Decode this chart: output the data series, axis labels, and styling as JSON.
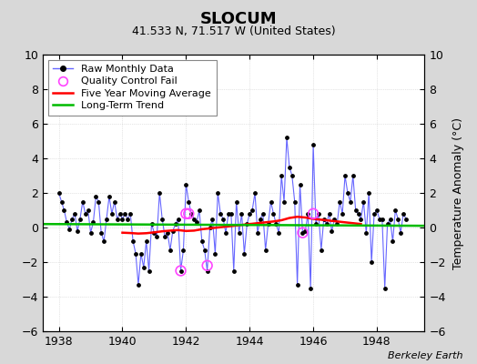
{
  "title": "SLOCUM",
  "subtitle": "41.533 N, 71.517 W (United States)",
  "ylabel": "Temperature Anomaly (°C)",
  "xlabel_credit": "Berkeley Earth",
  "xlim": [
    1937.5,
    1949.5
  ],
  "ylim": [
    -6,
    10
  ],
  "yticks": [
    -6,
    -4,
    -2,
    0,
    2,
    4,
    6,
    8,
    10
  ],
  "xticks": [
    1938,
    1940,
    1942,
    1944,
    1946,
    1948
  ],
  "bg_color": "#d8d8d8",
  "plot_bg_color": "#ffffff",
  "raw_color": "#6666ff",
  "raw_dot_color": "#000000",
  "qc_fail_color": "#ff44ff",
  "moving_avg_color": "#ff0000",
  "trend_color": "#00bb00",
  "raw_data": [
    [
      1938.0,
      2.0
    ],
    [
      1938.083,
      1.5
    ],
    [
      1938.167,
      1.0
    ],
    [
      1938.25,
      0.3
    ],
    [
      1938.333,
      -0.1
    ],
    [
      1938.417,
      0.5
    ],
    [
      1938.5,
      0.8
    ],
    [
      1938.583,
      -0.2
    ],
    [
      1938.667,
      0.5
    ],
    [
      1938.75,
      1.5
    ],
    [
      1938.833,
      0.8
    ],
    [
      1938.917,
      1.0
    ],
    [
      1939.0,
      -0.3
    ],
    [
      1939.083,
      0.3
    ],
    [
      1939.167,
      1.8
    ],
    [
      1939.25,
      1.5
    ],
    [
      1939.333,
      -0.3
    ],
    [
      1939.417,
      -0.8
    ],
    [
      1939.5,
      0.5
    ],
    [
      1939.583,
      1.8
    ],
    [
      1939.667,
      0.8
    ],
    [
      1939.75,
      1.5
    ],
    [
      1939.833,
      0.5
    ],
    [
      1939.917,
      0.8
    ],
    [
      1940.0,
      0.5
    ],
    [
      1940.083,
      0.8
    ],
    [
      1940.167,
      0.5
    ],
    [
      1940.25,
      0.8
    ],
    [
      1940.333,
      -0.8
    ],
    [
      1940.417,
      -1.5
    ],
    [
      1940.5,
      -3.3
    ],
    [
      1940.583,
      -1.5
    ],
    [
      1940.667,
      -2.3
    ],
    [
      1940.75,
      -0.8
    ],
    [
      1940.833,
      -2.5
    ],
    [
      1940.917,
      0.2
    ],
    [
      1941.0,
      -0.3
    ],
    [
      1941.083,
      -0.5
    ],
    [
      1941.167,
      2.0
    ],
    [
      1941.25,
      0.5
    ],
    [
      1941.333,
      -0.5
    ],
    [
      1941.417,
      -0.3
    ],
    [
      1941.5,
      -1.3
    ],
    [
      1941.583,
      -0.2
    ],
    [
      1941.667,
      0.2
    ],
    [
      1941.75,
      0.5
    ],
    [
      1941.833,
      -2.5
    ],
    [
      1941.917,
      -1.3
    ],
    [
      1942.0,
      2.5
    ],
    [
      1942.083,
      1.5
    ],
    [
      1942.167,
      0.8
    ],
    [
      1942.25,
      0.5
    ],
    [
      1942.333,
      0.3
    ],
    [
      1942.417,
      1.0
    ],
    [
      1942.5,
      -0.8
    ],
    [
      1942.583,
      -1.3
    ],
    [
      1942.667,
      -2.5
    ],
    [
      1942.75,
      0.0
    ],
    [
      1942.833,
      0.5
    ],
    [
      1942.917,
      -1.5
    ],
    [
      1943.0,
      2.0
    ],
    [
      1943.083,
      0.8
    ],
    [
      1943.167,
      0.5
    ],
    [
      1943.25,
      -0.3
    ],
    [
      1943.333,
      0.8
    ],
    [
      1943.417,
      0.8
    ],
    [
      1943.5,
      -2.5
    ],
    [
      1943.583,
      1.5
    ],
    [
      1943.667,
      -0.3
    ],
    [
      1943.75,
      0.8
    ],
    [
      1943.833,
      -1.5
    ],
    [
      1943.917,
      0.2
    ],
    [
      1944.0,
      0.8
    ],
    [
      1944.083,
      1.0
    ],
    [
      1944.167,
      2.0
    ],
    [
      1944.25,
      -0.3
    ],
    [
      1944.333,
      0.5
    ],
    [
      1944.417,
      0.8
    ],
    [
      1944.5,
      -1.3
    ],
    [
      1944.583,
      0.2
    ],
    [
      1944.667,
      1.5
    ],
    [
      1944.75,
      0.8
    ],
    [
      1944.833,
      0.2
    ],
    [
      1944.917,
      -0.3
    ],
    [
      1945.0,
      3.0
    ],
    [
      1945.083,
      1.5
    ],
    [
      1945.167,
      5.2
    ],
    [
      1945.25,
      3.5
    ],
    [
      1945.333,
      3.0
    ],
    [
      1945.417,
      1.5
    ],
    [
      1945.5,
      -3.3
    ],
    [
      1945.583,
      2.5
    ],
    [
      1945.667,
      -0.3
    ],
    [
      1945.75,
      -0.2
    ],
    [
      1945.833,
      0.8
    ],
    [
      1945.917,
      -3.5
    ],
    [
      1946.0,
      4.8
    ],
    [
      1946.083,
      0.2
    ],
    [
      1946.167,
      0.8
    ],
    [
      1946.25,
      -1.3
    ],
    [
      1946.333,
      0.5
    ],
    [
      1946.417,
      0.2
    ],
    [
      1946.5,
      0.8
    ],
    [
      1946.583,
      -0.2
    ],
    [
      1946.667,
      0.5
    ],
    [
      1946.75,
      0.2
    ],
    [
      1946.833,
      1.5
    ],
    [
      1946.917,
      0.8
    ],
    [
      1947.0,
      3.0
    ],
    [
      1947.083,
      2.0
    ],
    [
      1947.167,
      1.5
    ],
    [
      1947.25,
      3.0
    ],
    [
      1947.333,
      1.0
    ],
    [
      1947.417,
      0.8
    ],
    [
      1947.5,
      0.5
    ],
    [
      1947.583,
      1.5
    ],
    [
      1947.667,
      -0.3
    ],
    [
      1947.75,
      2.0
    ],
    [
      1947.833,
      -2.0
    ],
    [
      1947.917,
      0.8
    ],
    [
      1948.0,
      1.0
    ],
    [
      1948.083,
      0.5
    ],
    [
      1948.167,
      0.5
    ],
    [
      1948.25,
      -3.5
    ],
    [
      1948.333,
      0.2
    ],
    [
      1948.417,
      0.5
    ],
    [
      1948.5,
      -0.8
    ],
    [
      1948.583,
      1.0
    ],
    [
      1948.667,
      0.5
    ],
    [
      1948.75,
      -0.3
    ],
    [
      1948.833,
      0.8
    ],
    [
      1948.917,
      0.5
    ]
  ],
  "qc_fail_points": [
    [
      1941.833,
      -2.5
    ],
    [
      1942.0,
      0.8
    ],
    [
      1942.083,
      0.8
    ],
    [
      1942.667,
      -2.2
    ],
    [
      1945.667,
      -0.3
    ],
    [
      1946.0,
      0.8
    ]
  ],
  "moving_avg_x": [
    1940.0,
    1940.25,
    1940.5,
    1940.75,
    1941.0,
    1941.25,
    1941.5,
    1941.75,
    1942.0,
    1942.25,
    1942.5,
    1942.75,
    1943.0,
    1943.25,
    1943.5,
    1943.75,
    1944.0,
    1944.25,
    1944.5,
    1944.75,
    1945.0,
    1945.25,
    1945.5,
    1945.75,
    1946.0,
    1946.25,
    1946.5,
    1946.75,
    1947.0,
    1947.25,
    1947.5
  ],
  "moving_avg_y": [
    -0.3,
    -0.32,
    -0.35,
    -0.33,
    -0.28,
    -0.22,
    -0.18,
    -0.15,
    -0.2,
    -0.18,
    -0.1,
    -0.05,
    0.0,
    0.05,
    0.1,
    0.15,
    0.2,
    0.25,
    0.3,
    0.35,
    0.42,
    0.55,
    0.62,
    0.58,
    0.5,
    0.45,
    0.4,
    0.35,
    0.3,
    0.25,
    0.2
  ],
  "trend_x": [
    1937.5,
    1949.5
  ],
  "trend_y": [
    0.2,
    0.1
  ],
  "title_fontsize": 13,
  "subtitle_fontsize": 9,
  "tick_fontsize": 9,
  "ylabel_fontsize": 9,
  "credit_fontsize": 8,
  "legend_fontsize": 8
}
